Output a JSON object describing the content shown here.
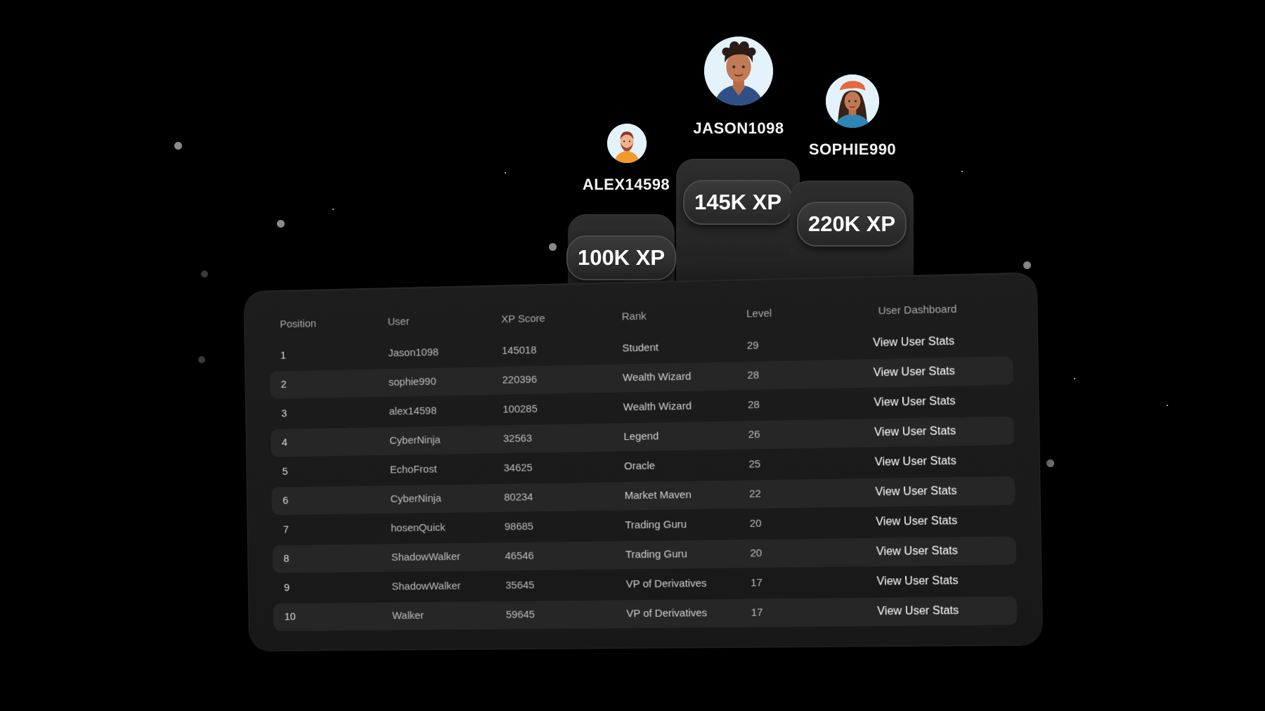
{
  "podium": {
    "first": {
      "name": "JASON1098",
      "xp": "145K XP"
    },
    "second": {
      "name": "SOPHIE990",
      "xp": "220K XP"
    },
    "third": {
      "name": "ALEX14598",
      "xp": "100K XP"
    }
  },
  "table": {
    "headers": {
      "position": "Position",
      "user": "User",
      "xp": "XP Score",
      "rank": "Rank",
      "level": "Level",
      "dashboard": "User Dashboard"
    },
    "rows": [
      {
        "position": "1",
        "user": "Jason1098",
        "xp": "145018",
        "rank": "Student",
        "level": "29",
        "action": "View User Stats"
      },
      {
        "position": "2",
        "user": "sophie990",
        "xp": "220396",
        "rank": "Wealth Wizard",
        "level": "28",
        "action": "View User Stats"
      },
      {
        "position": "3",
        "user": "alex14598",
        "xp": "100285",
        "rank": "Wealth Wizard",
        "level": "28",
        "action": "View User Stats"
      },
      {
        "position": "4",
        "user": "CyberNinja",
        "xp": "32563",
        "rank": "Legend",
        "level": "26",
        "action": "View User Stats"
      },
      {
        "position": "5",
        "user": "EchoFrost",
        "xp": "34625",
        "rank": "Oracle",
        "level": "25",
        "action": "View User Stats"
      },
      {
        "position": "6",
        "user": "CyberNinja",
        "xp": "80234",
        "rank": "Market Maven",
        "level": "22",
        "action": "View User Stats"
      },
      {
        "position": "7",
        "user": "hosenQuick",
        "xp": "98685",
        "rank": "Trading Guru",
        "level": "20",
        "action": "View User Stats"
      },
      {
        "position": "8",
        "user": "ShadowWalker",
        "xp": "46546",
        "rank": "Trading Guru",
        "level": "20",
        "action": "View User Stats"
      },
      {
        "position": "9",
        "user": "ShadowWalker",
        "xp": "35645",
        "rank": "VP of Derivatives",
        "level": "17",
        "action": "View User Stats"
      },
      {
        "position": "10",
        "user": "Walker",
        "xp": "59645",
        "rank": "VP of Derivatives",
        "level": "17",
        "action": "View User Stats"
      }
    ]
  },
  "colors": {
    "background": "#000000",
    "card": "#1b1b1b",
    "row_alt": "#262626",
    "podium": "#262626",
    "text_primary": "#ffffff",
    "text_muted": "#a9a9a9"
  },
  "icons": [
    "avatar-jason-icon",
    "avatar-sophie-icon",
    "avatar-alex-icon"
  ]
}
